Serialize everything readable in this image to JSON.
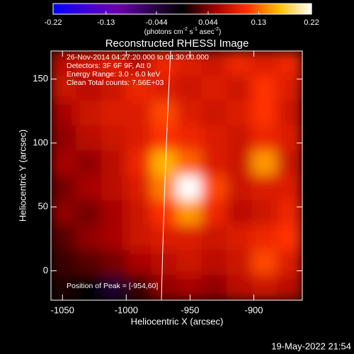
{
  "chart_data": {
    "type": "heatmap",
    "title": "Reconstructed RHESSI Image",
    "x_label": "Heliocentric X (arcsec)",
    "y_label": "Heliocentric Y (arcsec)",
    "xlim": [
      -1059,
      -862
    ],
    "ylim": [
      -23,
      172
    ],
    "xticks": [
      -1050,
      -1000,
      -950,
      -900
    ],
    "yticks": [
      0,
      50,
      100,
      150
    ],
    "clim": [
      -0.22,
      0.22
    ],
    "cticks": [
      -0.22,
      -0.13,
      -0.044,
      0.044,
      0.13,
      0.22
    ],
    "colorbar_label": [
      "(photons cm",
      "-2",
      " s",
      "-1",
      " asec",
      "-2",
      ")"
    ],
    "colormap": [
      "#0000ff",
      "#4000d0",
      "#6a00b0",
      "#300050",
      "#000000",
      "#a00000",
      "#ff3000",
      "#ffc000",
      "#ffffff"
    ],
    "annotations": [
      "26-Nov-2014 04:27:20.000 to 04:30:00.000",
      "Detectors: 3F 6F 9F, Att 0",
      "Energy Range: 3.0 - 6.0 keV",
      "Clean     Total counts: 7.56E+03"
    ],
    "peak_label": "Position of Peak = [-954,60]",
    "footer": "19-May-2022 21:54",
    "values": [
      [
        0.07,
        0.08,
        0.09,
        0.07,
        0.1,
        0.09,
        0.08,
        0.1,
        0.09,
        0.1
      ],
      [
        0.08,
        0.07,
        0.08,
        0.1,
        0.09,
        0.08,
        0.09,
        0.08,
        0.11,
        0.09
      ],
      [
        0.06,
        0.08,
        0.09,
        0.09,
        0.12,
        0.09,
        0.08,
        0.09,
        0.11,
        0.08
      ],
      [
        0.05,
        0.07,
        0.08,
        0.09,
        0.11,
        0.1,
        0.09,
        0.08,
        0.1,
        0.09
      ],
      [
        0.06,
        0.05,
        0.07,
        0.1,
        0.16,
        0.13,
        0.09,
        0.08,
        0.15,
        0.08
      ],
      [
        0.04,
        0.06,
        0.07,
        0.09,
        0.14,
        0.22,
        0.12,
        0.08,
        0.09,
        0.09
      ],
      [
        0.05,
        0.04,
        0.06,
        0.08,
        0.11,
        0.15,
        0.1,
        0.07,
        0.08,
        0.1
      ],
      [
        0.03,
        0.05,
        0.06,
        0.08,
        0.09,
        0.09,
        0.08,
        0.09,
        0.1,
        0.11
      ],
      [
        0.02,
        0.03,
        0.04,
        0.06,
        0.07,
        0.08,
        0.07,
        0.08,
        0.12,
        0.09
      ],
      [
        0.01,
        0.0,
        -0.03,
        0.02,
        0.05,
        0.06,
        0.05,
        0.07,
        0.08,
        0.07
      ]
    ]
  }
}
